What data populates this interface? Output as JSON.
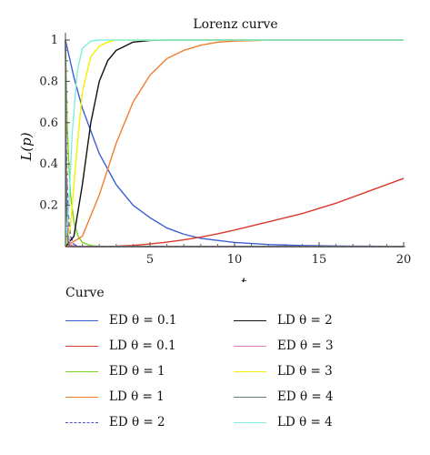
{
  "chart_data": {
    "type": "line",
    "title": "Lorenz curve",
    "xlabel": "t",
    "ylabel": "L(p)",
    "xlim": [
      0,
      20
    ],
    "ylim": [
      0,
      1
    ],
    "xticks": [
      5,
      10,
      15,
      20
    ],
    "yticks": [
      0.2,
      0.4,
      0.6,
      0.8,
      1
    ],
    "xtick_labels": [
      "5",
      "10",
      "15",
      "20"
    ],
    "ytick_labels": [
      "0.2",
      "0.4",
      "0.6",
      "0.8",
      "1"
    ],
    "grid": false,
    "legend_title": "Curve",
    "legend_position": "bottom",
    "series": [
      {
        "name": "ED θ = 0.1",
        "color": "#3b5fd6",
        "dash": "solid",
        "x": [
          0,
          0.5,
          1,
          2,
          3,
          4,
          5,
          6,
          7,
          8,
          9,
          10,
          12,
          14,
          16,
          18,
          20
        ],
        "y": [
          1.0,
          0.82,
          0.67,
          0.45,
          0.3,
          0.2,
          0.14,
          0.09,
          0.06,
          0.04,
          0.03,
          0.02,
          0.01,
          0.005,
          0.003,
          0.002,
          0.001
        ]
      },
      {
        "name": "LD θ = 0.1",
        "color": "#d93a2b",
        "dash": "solid",
        "x": [
          0,
          1,
          2,
          3,
          4,
          5,
          6,
          7,
          8,
          9,
          10,
          12,
          14,
          16,
          18,
          20
        ],
        "y": [
          0,
          0.0,
          0.0,
          0.002,
          0.006,
          0.013,
          0.022,
          0.033,
          0.046,
          0.062,
          0.08,
          0.12,
          0.16,
          0.21,
          0.27,
          0.33
        ]
      },
      {
        "name": "ED θ = 1",
        "color": "#7ed321",
        "dash": "solid",
        "x": [
          0,
          0.1,
          0.2,
          0.3,
          0.5,
          0.75,
          1,
          1.5,
          2,
          3,
          4,
          6,
          8,
          20
        ],
        "y": [
          1.0,
          0.6,
          0.4,
          0.25,
          0.12,
          0.05,
          0.02,
          0.005,
          0.001,
          0,
          0,
          0,
          0,
          0
        ]
      },
      {
        "name": "LD θ = 1",
        "color": "#f07d2e",
        "dash": "solid",
        "x": [
          0,
          1,
          2,
          3,
          4,
          5,
          6,
          7,
          8,
          9,
          10,
          12,
          14,
          20
        ],
        "y": [
          0,
          0.05,
          0.25,
          0.5,
          0.7,
          0.83,
          0.91,
          0.95,
          0.975,
          0.99,
          0.995,
          0.999,
          1,
          1
        ]
      },
      {
        "name": "ED θ = 2",
        "color": "#4a4fc4",
        "dash": "dashed",
        "x": [
          0,
          0.05,
          0.1,
          0.2,
          0.3,
          0.5,
          0.75,
          1,
          1.5,
          2,
          3,
          5,
          10,
          20
        ],
        "y": [
          1.0,
          0.5,
          0.3,
          0.12,
          0.05,
          0.01,
          0.002,
          0,
          0,
          0,
          0,
          0,
          0,
          0
        ]
      },
      {
        "name": "LD θ = 2",
        "color": "#111111",
        "dash": "solid",
        "x": [
          0,
          0.5,
          1,
          1.5,
          2,
          2.5,
          3,
          4,
          5,
          6,
          8,
          10,
          20
        ],
        "y": [
          0,
          0.05,
          0.3,
          0.6,
          0.8,
          0.9,
          0.95,
          0.99,
          0.998,
          1,
          1,
          1,
          1
        ]
      },
      {
        "name": "ED θ = 3",
        "color": "#e07fb8",
        "dash": "solid",
        "x": [
          0,
          0.05,
          0.1,
          0.2,
          0.3,
          0.5,
          1,
          2,
          5,
          10,
          20
        ],
        "y": [
          1.0,
          0.4,
          0.18,
          0.04,
          0.01,
          0.001,
          0,
          0,
          0,
          0,
          0
        ]
      },
      {
        "name": "LD θ = 3",
        "color": "#f3f000",
        "dash": "solid",
        "x": [
          0,
          0.3,
          0.6,
          1,
          1.5,
          2,
          2.5,
          3,
          4,
          5,
          10,
          20
        ],
        "y": [
          0,
          0.1,
          0.4,
          0.75,
          0.92,
          0.97,
          0.99,
          1,
          1,
          1,
          1,
          1
        ]
      },
      {
        "name": "ED θ = 4",
        "color": "#607d7a",
        "dash": "solid",
        "x": [
          0,
          0.04,
          0.08,
          0.15,
          0.25,
          0.4,
          1,
          2,
          5,
          10,
          20
        ],
        "y": [
          1.0,
          0.35,
          0.12,
          0.02,
          0.003,
          0,
          0,
          0,
          0,
          0,
          0
        ]
      },
      {
        "name": "LD θ = 4",
        "color": "#7ff0dd",
        "dash": "solid",
        "x": [
          0,
          0.2,
          0.4,
          0.7,
          1,
          1.5,
          2,
          3,
          5,
          10,
          20
        ],
        "y": [
          0,
          0.2,
          0.55,
          0.85,
          0.96,
          0.995,
          1,
          1,
          1,
          1,
          1
        ]
      }
    ]
  }
}
